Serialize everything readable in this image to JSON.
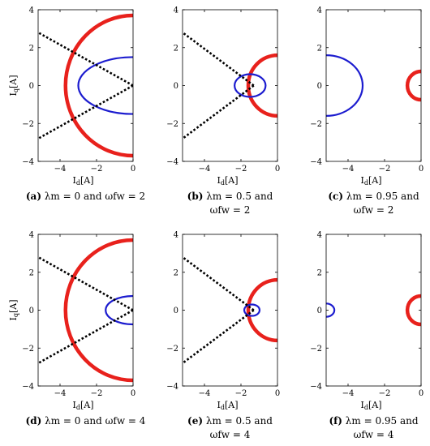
{
  "chart_data": [
    {
      "panel": "a",
      "type": "line",
      "caption_label": "(a)",
      "caption_lines": [
        "λm = 0 and ωfw = 2"
      ],
      "xlabel": "Id[A]",
      "ylabel": "Iq[A]",
      "xlim": [
        -5.2,
        0
      ],
      "ylim": [
        -4,
        4
      ],
      "xticks": [
        -4,
        -2,
        0
      ],
      "yticks": [
        -4,
        -2,
        0,
        2,
        4
      ],
      "voltage_ellipse": {
        "center_x": 0,
        "semi_axis_x": 3.7,
        "semi_axis_y": 3.7,
        "color": "#e8211c"
      },
      "current_ellipse": {
        "center_x": 0,
        "semi_axis_x": 3.0,
        "semi_axis_y": 1.5,
        "color": "#1c1ccf"
      },
      "mtpa_lines": {
        "vertex_x": 0,
        "end_x": -5.2,
        "end_y": 2.8
      }
    },
    {
      "panel": "b",
      "type": "line",
      "caption_label": "(b)",
      "caption_lines": [
        "λm = 0.5 and",
        "ωfw = 2"
      ],
      "xlabel": "Id[A]",
      "ylabel": "",
      "xlim": [
        -5.2,
        0
      ],
      "ylim": [
        -4,
        4
      ],
      "xticks": [
        -4,
        -2,
        0
      ],
      "yticks": [
        -4,
        -2,
        0,
        2,
        4
      ],
      "voltage_ellipse": {
        "center_x": 0,
        "semi_axis_x": 1.6,
        "semi_axis_y": 1.6,
        "color": "#e8211c"
      },
      "current_ellipse": {
        "center_x": -1.5,
        "semi_axis_x": 0.85,
        "semi_axis_y": 0.6,
        "color": "#1c1ccf"
      },
      "mtpa_lines": {
        "vertex_x": -1.3,
        "end_x": -5.2,
        "end_y": 2.8
      }
    },
    {
      "panel": "c",
      "type": "line",
      "caption_label": "(c)",
      "caption_lines": [
        "λm = 0.95 and",
        "ωfw = 2"
      ],
      "xlabel": "Id[A]",
      "ylabel": "",
      "xlim": [
        -5.2,
        0
      ],
      "ylim": [
        -4,
        4
      ],
      "xticks": [
        -4,
        -2,
        0
      ],
      "yticks": [
        -4,
        -2,
        0,
        2,
        4
      ],
      "voltage_ellipse": {
        "center_x": 0,
        "semi_axis_x": 0.75,
        "semi_axis_y": 0.75,
        "color": "#e8211c"
      },
      "current_ellipse": {
        "center_x": -5.2,
        "semi_axis_x": 2.0,
        "semi_axis_y": 1.6,
        "color": "#1c1ccf"
      },
      "mtpa_lines": null
    },
    {
      "panel": "d",
      "type": "line",
      "caption_label": "(d)",
      "caption_lines": [
        "λm = 0 and ωfw = 4"
      ],
      "xlabel": "Id[A]",
      "ylabel": "Iq[A]",
      "xlim": [
        -5.2,
        0
      ],
      "ylim": [
        -4,
        4
      ],
      "xticks": [
        -4,
        -2,
        0
      ],
      "yticks": [
        -4,
        -2,
        0,
        2,
        4
      ],
      "voltage_ellipse": {
        "center_x": 0,
        "semi_axis_x": 3.7,
        "semi_axis_y": 3.7,
        "color": "#e8211c"
      },
      "current_ellipse": {
        "center_x": 0,
        "semi_axis_x": 1.5,
        "semi_axis_y": 0.75,
        "color": "#1c1ccf"
      },
      "mtpa_lines": {
        "vertex_x": 0,
        "end_x": -5.2,
        "end_y": 2.8
      }
    },
    {
      "panel": "e",
      "type": "line",
      "caption_label": "(e)",
      "caption_lines": [
        "λm = 0.5 and",
        "ωfw = 4"
      ],
      "xlabel": "Id[A]",
      "ylabel": "",
      "xlim": [
        -5.2,
        0
      ],
      "ylim": [
        -4,
        4
      ],
      "xticks": [
        -4,
        -2,
        0
      ],
      "yticks": [
        -4,
        -2,
        0,
        2,
        4
      ],
      "voltage_ellipse": {
        "center_x": 0,
        "semi_axis_x": 1.6,
        "semi_axis_y": 1.6,
        "color": "#e8211c"
      },
      "current_ellipse": {
        "center_x": -1.4,
        "semi_axis_x": 0.42,
        "semi_axis_y": 0.3,
        "color": "#1c1ccf"
      },
      "mtpa_lines": {
        "vertex_x": -1.3,
        "end_x": -5.2,
        "end_y": 2.8
      }
    },
    {
      "panel": "f",
      "type": "line",
      "caption_label": "(f)",
      "caption_lines": [
        "λm = 0.95 and",
        "ωfw = 4"
      ],
      "xlabel": "Id[A]",
      "ylabel": "",
      "xlim": [
        -5.2,
        0
      ],
      "ylim": [
        -4,
        4
      ],
      "xticks": [
        -4,
        -2,
        0
      ],
      "yticks": [
        -4,
        -2,
        0,
        2,
        4
      ],
      "voltage_ellipse": {
        "center_x": 0,
        "semi_axis_x": 0.75,
        "semi_axis_y": 0.75,
        "color": "#e8211c"
      },
      "current_ellipse": {
        "center_x": -5.2,
        "semi_axis_x": 0.45,
        "semi_axis_y": 0.35,
        "color": "#1c1ccf"
      },
      "mtpa_lines": null
    }
  ]
}
